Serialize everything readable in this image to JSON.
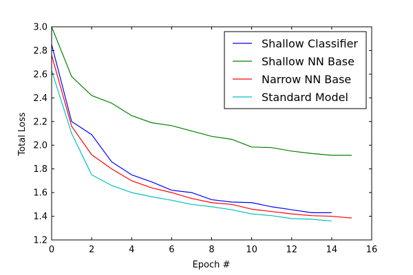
{
  "chart_data": {
    "type": "line",
    "xlabel": "Epoch #",
    "ylabel": "Total Loss",
    "xlim": [
      0,
      16
    ],
    "ylim": [
      1.2,
      3.0
    ],
    "xticks": [
      "0",
      "2",
      "4",
      "6",
      "8",
      "10",
      "12",
      "14",
      "16"
    ],
    "yticks": [
      "1.2",
      "1.4",
      "1.6",
      "1.8",
      "2.0",
      "2.2",
      "2.4",
      "2.6",
      "2.8",
      "3.0"
    ],
    "legend_position": "top-right",
    "grid": false,
    "series": [
      {
        "name": "Shallow Classifier",
        "color": "#0000ff",
        "x": [
          0,
          1,
          2,
          3,
          4,
          5,
          6,
          7,
          8,
          9,
          10,
          11,
          12,
          13,
          14
        ],
        "y": [
          2.85,
          2.2,
          2.09,
          1.86,
          1.75,
          1.69,
          1.62,
          1.6,
          1.54,
          1.52,
          1.515,
          1.48,
          1.455,
          1.43,
          1.43
        ]
      },
      {
        "name": "Shallow NN Base",
        "color": "#008000",
        "x": [
          0,
          1,
          2,
          3,
          4,
          5,
          6,
          7,
          8,
          9,
          10,
          11,
          12,
          13,
          14,
          15
        ],
        "y": [
          3.0,
          2.58,
          2.42,
          2.355,
          2.25,
          2.19,
          2.165,
          2.12,
          2.075,
          2.05,
          1.985,
          1.98,
          1.95,
          1.93,
          1.915,
          1.915
        ]
      },
      {
        "name": "Narrow NN Base",
        "color": "#ff0000",
        "x": [
          0,
          1,
          2,
          3,
          4,
          5,
          6,
          7,
          8,
          9,
          10,
          11,
          12,
          13,
          14,
          15
        ],
        "y": [
          2.76,
          2.16,
          1.92,
          1.8,
          1.7,
          1.64,
          1.6,
          1.55,
          1.515,
          1.5,
          1.46,
          1.44,
          1.42,
          1.405,
          1.4,
          1.385
        ]
      },
      {
        "name": "Standard Model",
        "color": "#00bfbf",
        "x": [
          0,
          1,
          2,
          3,
          4,
          5,
          6,
          7,
          8,
          9,
          10,
          11,
          12,
          13,
          14
        ],
        "y": [
          2.63,
          2.1,
          1.75,
          1.66,
          1.6,
          1.565,
          1.535,
          1.5,
          1.48,
          1.455,
          1.42,
          1.405,
          1.38,
          1.375,
          1.36
        ]
      }
    ]
  }
}
